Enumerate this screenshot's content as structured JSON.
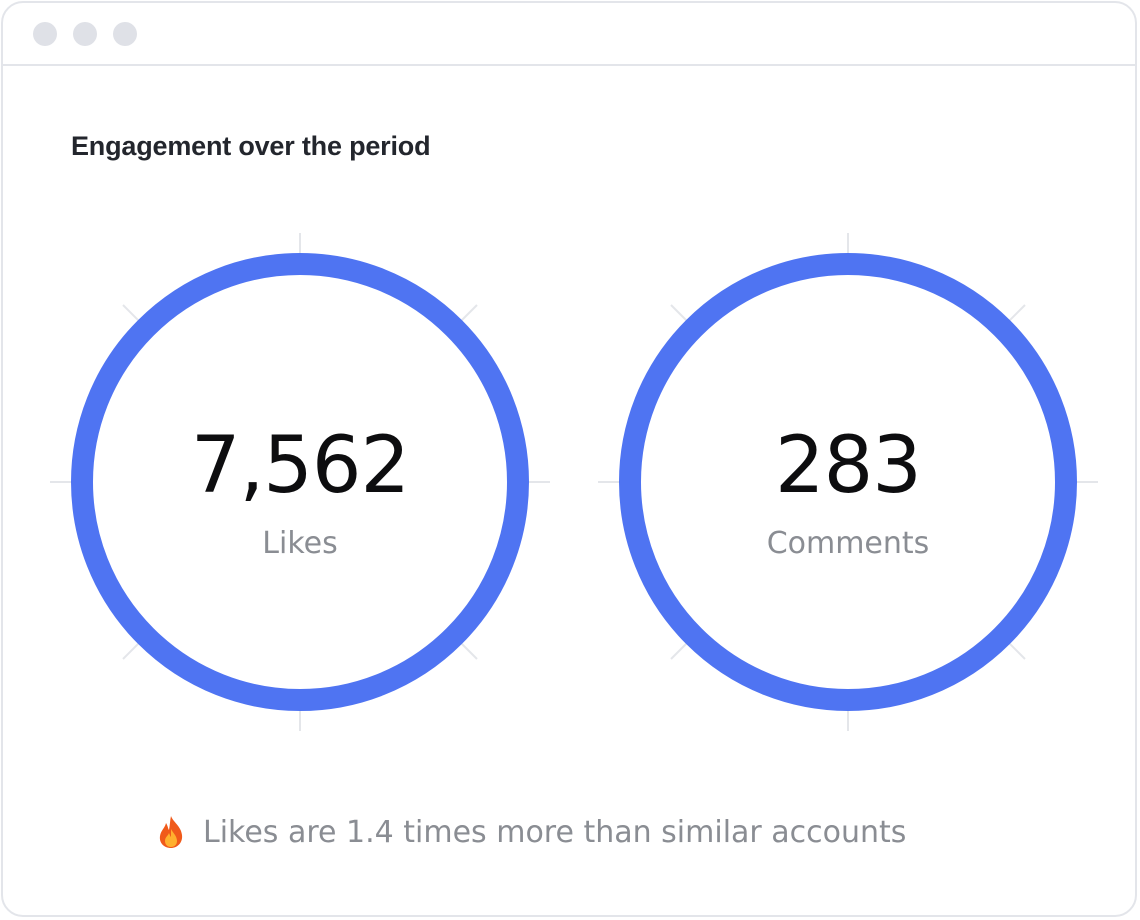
{
  "card": {
    "title": "Engagement over the period"
  },
  "metrics": [
    {
      "value": "7,562",
      "label": "Likes"
    },
    {
      "value": "283",
      "label": "Comments"
    }
  ],
  "insight": {
    "icon": "fire-icon",
    "text": "Likes are 1.4 times more than similar accounts"
  },
  "colors": {
    "ring": "#4f74f2",
    "guide": "#e4e6ea",
    "fire_outer": "#f05a1a",
    "fire_inner": "#ffb02e"
  }
}
